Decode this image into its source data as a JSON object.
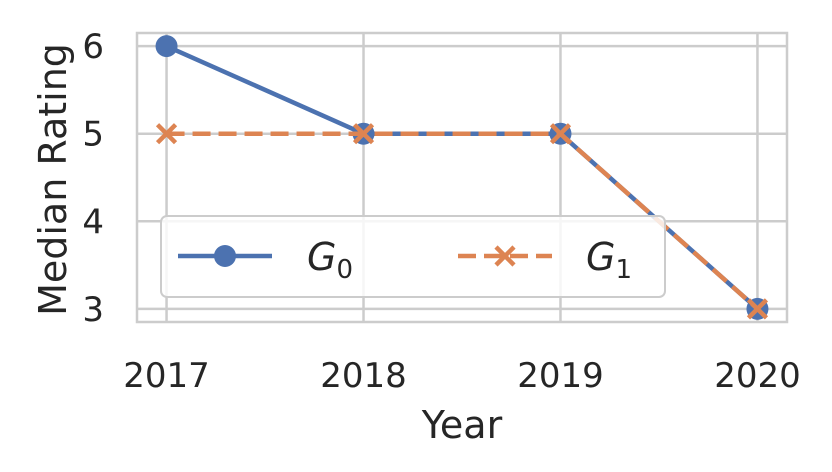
{
  "chart_data": {
    "type": "line",
    "x": [
      2017,
      2018,
      2019,
      2020
    ],
    "x_tick_labels": [
      "2017",
      "2018",
      "2019",
      "2020"
    ],
    "y_ticks": [
      3,
      4,
      5,
      6
    ],
    "y_tick_labels": [
      "3",
      "4",
      "5",
      "6"
    ],
    "xlabel": "Year",
    "ylabel": "Median Rating",
    "xlim": [
      2016.85,
      2020.15
    ],
    "ylim": [
      2.85,
      6.15
    ],
    "grid": true,
    "legend_placement": "lower-center",
    "legend_columns": 2,
    "series": [
      {
        "name": "G",
        "name_subscript": "0",
        "values": [
          6,
          5,
          5,
          3
        ],
        "color": "#4c72b0",
        "line_style": "solid",
        "marker": "circle"
      },
      {
        "name": "G",
        "name_subscript": "1",
        "values": [
          5,
          5,
          5,
          3
        ],
        "color": "#dd8452",
        "line_style": "dashed",
        "marker": "x"
      }
    ]
  }
}
